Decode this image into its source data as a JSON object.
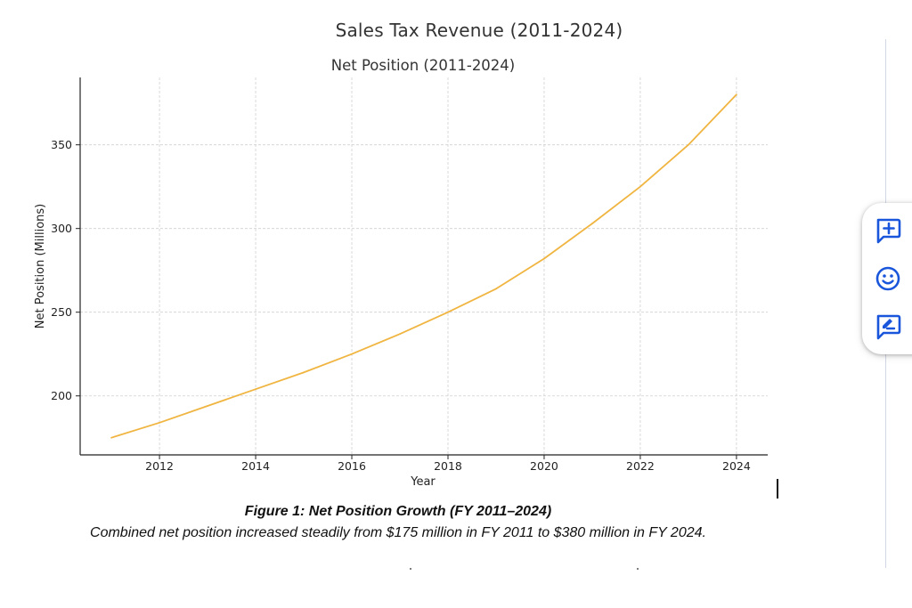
{
  "document": {
    "title": "Sales Tax Revenue (2011-2024)"
  },
  "caption": {
    "title": "Figure 1: Net Position Growth (FY 2011–2024)",
    "text": "Combined net position increased steadily from $175 million in FY 2011 to $380 million in FY 2024."
  },
  "side_toolbar": {
    "buttons": [
      {
        "icon": "add-comment-icon"
      },
      {
        "icon": "emoji-icon"
      },
      {
        "icon": "suggest-edit-icon"
      }
    ],
    "accent_color": "#1a56db"
  },
  "chart_data": {
    "type": "line",
    "title": "Net Position (2011-2024)",
    "xlabel": "Year",
    "ylabel": "Net Position (Millions)",
    "x": [
      2011,
      2012,
      2013,
      2014,
      2015,
      2016,
      2017,
      2018,
      2019,
      2020,
      2021,
      2022,
      2023,
      2024
    ],
    "series": [
      {
        "values": [
          175,
          184,
          194,
          204,
          214,
          225,
          237,
          250,
          264,
          282,
          303,
          325,
          350,
          380
        ],
        "color": "#f0b541"
      }
    ],
    "xlim": [
      2010.35,
      2024.65
    ],
    "ylim": [
      164.75,
      390.25
    ],
    "xticks": [
      "2012",
      "2014",
      "2016",
      "2018",
      "2020",
      "2022",
      "2024"
    ],
    "yticks": [
      "200",
      "250",
      "300",
      "350"
    ],
    "grid": true,
    "legend": false
  }
}
